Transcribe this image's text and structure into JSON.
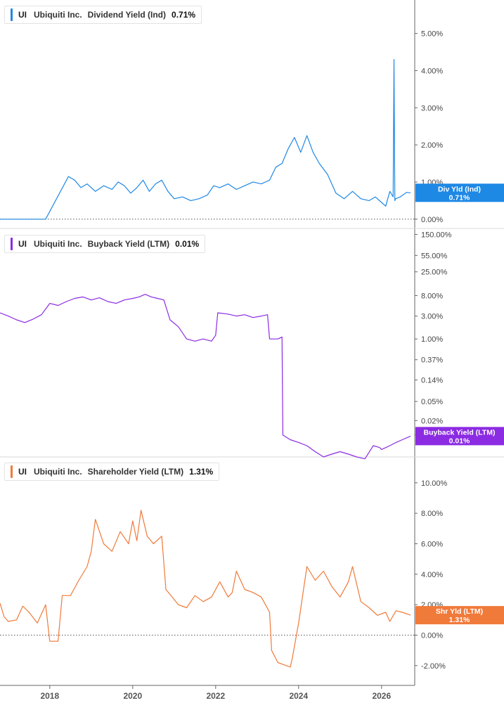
{
  "chart_data": [
    {
      "type": "line",
      "legend": {
        "ticker": "UI",
        "company": "Ubiquiti Inc.",
        "metric": "Dividend Yield (Ind)",
        "value": "0.71%"
      },
      "color": "#1e88e5",
      "yscale": "linear",
      "ylim": [
        -0.25,
        5.9
      ],
      "yticks": [
        {
          "v": 5,
          "label": "5.00%"
        },
        {
          "v": 4,
          "label": "4.00%"
        },
        {
          "v": 3,
          "label": "3.00%"
        },
        {
          "v": 2,
          "label": "2.00%"
        },
        {
          "v": 1,
          "label": "1.00%"
        },
        {
          "v": 0,
          "label": "0.00%"
        }
      ],
      "zero_line": true,
      "badge": {
        "label": "Div Yld (Ind)",
        "value": "0.71%",
        "at": 0.71
      },
      "series": [
        {
          "x": [
            2016.8,
            2017.9,
            2018.45,
            2018.6,
            2018.75,
            2018.9,
            2019.1,
            2019.3,
            2019.5,
            2019.65,
            2019.8,
            2019.95,
            2020.1,
            2020.25,
            2020.4,
            2020.55,
            2020.7,
            2020.85,
            2021.0,
            2021.2,
            2021.4,
            2021.6,
            2021.8,
            2021.95,
            2022.1,
            2022.3,
            2022.5,
            2022.7,
            2022.9,
            2023.1,
            2023.3,
            2023.45,
            2023.6,
            2023.75,
            2023.9,
            2024.05,
            2024.2,
            2024.35,
            2024.5,
            2024.7,
            2024.9,
            2025.1,
            2025.3,
            2025.5,
            2025.7,
            2025.85,
            2026.0,
            2026.1,
            2026.2,
            2026.28,
            2026.3,
            2026.32,
            2026.34,
            2026.45,
            2026.6,
            2026.7
          ],
          "y": [
            0,
            0,
            1.15,
            1.05,
            0.85,
            0.95,
            0.75,
            0.9,
            0.8,
            1.0,
            0.9,
            0.7,
            0.85,
            1.05,
            0.75,
            0.95,
            1.05,
            0.75,
            0.55,
            0.6,
            0.5,
            0.55,
            0.65,
            0.9,
            0.85,
            0.95,
            0.8,
            0.9,
            1.0,
            0.95,
            1.05,
            1.4,
            1.5,
            1.9,
            2.2,
            1.8,
            2.25,
            1.8,
            1.5,
            1.2,
            0.7,
            0.55,
            0.75,
            0.55,
            0.5,
            0.6,
            0.45,
            0.35,
            0.75,
            0.6,
            4.3,
            0.5,
            0.55,
            0.6,
            0.72,
            0.71
          ]
        }
      ]
    },
    {
      "type": "line",
      "legend": {
        "ticker": "UI",
        "company": "Ubiquiti Inc.",
        "metric": "Buyback Yield (LTM)",
        "value": "0.01%"
      },
      "color": "#8b2be2",
      "yscale": "log",
      "ylim": [
        0.0035,
        200
      ],
      "yticks": [
        {
          "v": 150,
          "label": "150.00%"
        },
        {
          "v": 55,
          "label": "55.00%"
        },
        {
          "v": 25,
          "label": "25.00%"
        },
        {
          "v": 8,
          "label": "8.00%"
        },
        {
          "v": 3,
          "label": "3.00%"
        },
        {
          "v": 1,
          "label": "1.00%"
        },
        {
          "v": 0.37,
          "label": "0.37%"
        },
        {
          "v": 0.14,
          "label": "0.14%"
        },
        {
          "v": 0.05,
          "label": "0.05%"
        },
        {
          "v": 0.02,
          "label": "0.02%"
        },
        {
          "v": 0.01,
          "label": "0.01%"
        }
      ],
      "zero_line": false,
      "badge": {
        "label": "Buyback Yield (LTM)",
        "value": "0.01%",
        "at": 0.0095
      },
      "series": [
        {
          "x": [
            2016.8,
            2017.0,
            2017.2,
            2017.4,
            2017.6,
            2017.8,
            2018.0,
            2018.2,
            2018.4,
            2018.6,
            2018.8,
            2019.0,
            2019.2,
            2019.4,
            2019.6,
            2019.8,
            2020.0,
            2020.15,
            2020.3,
            2020.45,
            2020.6,
            2020.75,
            2020.9,
            2021.1,
            2021.3,
            2021.5,
            2021.7,
            2021.9,
            2022.0,
            2022.05,
            2022.3,
            2022.5,
            2022.7,
            2022.9,
            2023.1,
            2023.25,
            2023.3,
            2023.5,
            2023.6,
            2023.62,
            2023.8,
            2024.0,
            2024.2,
            2024.4,
            2024.6,
            2024.8,
            2025.0,
            2025.2,
            2025.4,
            2025.6,
            2025.8,
            2025.95,
            2026.0,
            2026.2,
            2026.35,
            2026.5,
            2026.7
          ],
          "y": [
            3.5,
            3.0,
            2.5,
            2.2,
            2.6,
            3.2,
            5.5,
            5.0,
            6.0,
            7.0,
            7.5,
            6.5,
            7.2,
            6.0,
            5.5,
            6.5,
            7.0,
            7.5,
            8.5,
            7.5,
            7.0,
            6.5,
            2.5,
            1.8,
            1.0,
            0.9,
            1.0,
            0.9,
            1.2,
            3.5,
            3.3,
            3.0,
            3.2,
            2.8,
            3.0,
            3.2,
            1.0,
            1.0,
            1.1,
            0.01,
            0.008,
            0.007,
            0.006,
            0.0045,
            0.0035,
            0.004,
            0.0045,
            0.004,
            0.0035,
            0.0032,
            0.006,
            0.0055,
            0.005,
            0.006,
            0.007,
            0.008,
            0.0095
          ]
        }
      ]
    },
    {
      "type": "line",
      "legend": {
        "ticker": "UI",
        "company": "Ubiquiti Inc.",
        "metric": "Shareholder Yield (LTM)",
        "value": "1.31%"
      },
      "color": "#f07a3a",
      "yscale": "linear",
      "ylim": [
        -3.3,
        11.7
      ],
      "yticks": [
        {
          "v": 10,
          "label": "10.00%"
        },
        {
          "v": 8,
          "label": "8.00%"
        },
        {
          "v": 6,
          "label": "6.00%"
        },
        {
          "v": 4,
          "label": "4.00%"
        },
        {
          "v": 2,
          "label": "2.00%"
        },
        {
          "v": 0,
          "label": "0.00%"
        },
        {
          "v": -2,
          "label": "-2.00%"
        }
      ],
      "zero_line": true,
      "badge": {
        "label": "Shr Yld (LTM)",
        "value": "1.31%",
        "at": 1.31
      },
      "series": [
        {
          "x": [
            2016.8,
            2016.9,
            2017.0,
            2017.2,
            2017.35,
            2017.5,
            2017.7,
            2017.9,
            2018.0,
            2018.2,
            2018.3,
            2018.5,
            2018.7,
            2018.9,
            2019.0,
            2019.1,
            2019.3,
            2019.5,
            2019.7,
            2019.9,
            2020.0,
            2020.1,
            2020.2,
            2020.35,
            2020.5,
            2020.7,
            2020.8,
            2020.95,
            2021.1,
            2021.3,
            2021.5,
            2021.7,
            2021.9,
            2022.1,
            2022.3,
            2022.4,
            2022.5,
            2022.7,
            2022.9,
            2023.1,
            2023.3,
            2023.35,
            2023.5,
            2023.7,
            2023.8,
            2023.85,
            2024.0,
            2024.2,
            2024.4,
            2024.6,
            2024.8,
            2025.0,
            2025.2,
            2025.3,
            2025.5,
            2025.7,
            2025.9,
            2026.1,
            2026.2,
            2026.35,
            2026.5,
            2026.7
          ],
          "y": [
            2.1,
            1.2,
            0.9,
            1.0,
            1.9,
            1.5,
            0.8,
            2.0,
            -0.4,
            -0.4,
            2.6,
            2.6,
            3.6,
            4.5,
            5.5,
            7.6,
            6.0,
            5.5,
            6.8,
            6.0,
            7.5,
            6.2,
            8.2,
            6.5,
            6.0,
            6.5,
            3.0,
            2.5,
            2.0,
            1.8,
            2.6,
            2.2,
            2.5,
            3.5,
            2.5,
            2.8,
            4.2,
            3.0,
            2.8,
            2.5,
            1.5,
            -1.0,
            -1.8,
            -2.0,
            -2.1,
            -1.5,
            0.8,
            4.5,
            3.6,
            4.2,
            3.2,
            2.5,
            3.5,
            4.5,
            2.2,
            1.8,
            1.3,
            1.5,
            0.9,
            1.6,
            1.5,
            1.31
          ]
        }
      ]
    }
  ],
  "x_axis": {
    "range": [
      2016.8,
      2026.8
    ],
    "ticks": [
      {
        "v": 2018,
        "label": "2018"
      },
      {
        "v": 2020,
        "label": "2020"
      },
      {
        "v": 2022,
        "label": "2022"
      },
      {
        "v": 2024,
        "label": "2024"
      },
      {
        "v": 2026,
        "label": "2026"
      }
    ]
  },
  "colors": {
    "axis": "#666666",
    "divider": "#d9d9d9",
    "text": "#444444"
  }
}
